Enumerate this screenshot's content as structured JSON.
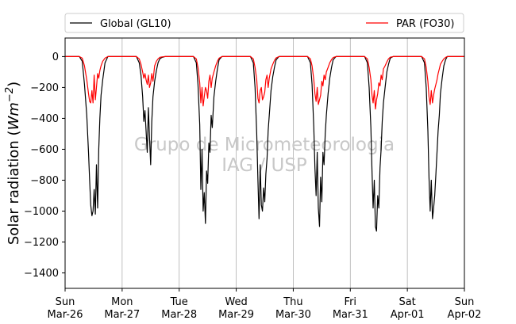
{
  "chart_data": {
    "type": "line",
    "ylabel_main": "Solar radiation (",
    "ylabel_math": "Wm",
    "ylabel_exp": "−2",
    "ylabel_close": ")",
    "ylim": [
      -1500,
      120
    ],
    "yticks": [
      0,
      -200,
      -400,
      -600,
      -800,
      -1000,
      -1200,
      -1400
    ],
    "xticks": [
      {
        "day": "Sun",
        "date": "Mar-26"
      },
      {
        "day": "Mon",
        "date": "Mar-27"
      },
      {
        "day": "Tue",
        "date": "Mar-28"
      },
      {
        "day": "Wed",
        "date": "Mar-29"
      },
      {
        "day": "Thu",
        "date": "Mar-30"
      },
      {
        "day": "Fri",
        "date": "Mar-31"
      },
      {
        "day": "Sat",
        "date": "Apr-01"
      },
      {
        "day": "Sun",
        "date": "Apr-02"
      }
    ],
    "x_range_days": [
      0,
      7
    ],
    "grid": "vertical-only",
    "legend_position": "top (above plot)",
    "watermark": [
      "Grupo de Micrometeorologia",
      "IAG / USP"
    ],
    "series": [
      {
        "name": "Global (GL10)",
        "color": "#000000",
        "x": [
          0.0,
          0.25,
          0.3,
          0.34,
          0.38,
          0.41,
          0.43,
          0.45,
          0.47,
          0.49,
          0.51,
          0.53,
          0.55,
          0.57,
          0.59,
          0.61,
          0.63,
          0.66,
          0.7,
          0.75,
          1.0,
          1.25,
          1.3,
          1.33,
          1.36,
          1.38,
          1.4,
          1.42,
          1.44,
          1.46,
          1.48,
          1.5,
          1.52,
          1.54,
          1.57,
          1.6,
          1.63,
          1.66,
          1.7,
          1.75,
          2.0,
          2.25,
          2.3,
          2.33,
          2.36,
          2.38,
          2.4,
          2.42,
          2.44,
          2.46,
          2.48,
          2.5,
          2.52,
          2.54,
          2.56,
          2.58,
          2.61,
          2.64,
          2.67,
          2.7,
          2.75,
          3.0,
          3.25,
          3.3,
          3.33,
          3.36,
          3.38,
          3.4,
          3.42,
          3.44,
          3.46,
          3.48,
          3.5,
          3.52,
          3.54,
          3.56,
          3.58,
          3.61,
          3.64,
          3.67,
          3.7,
          3.75,
          4.0,
          4.25,
          4.3,
          4.33,
          4.36,
          4.38,
          4.4,
          4.42,
          4.44,
          4.46,
          4.48,
          4.5,
          4.52,
          4.54,
          4.56,
          4.58,
          4.61,
          4.64,
          4.67,
          4.7,
          4.75,
          5.0,
          5.25,
          5.3,
          5.33,
          5.36,
          5.38,
          5.4,
          5.42,
          5.44,
          5.46,
          5.48,
          5.5,
          5.52,
          5.54,
          5.56,
          5.58,
          5.61,
          5.64,
          5.67,
          5.7,
          5.75,
          6.0,
          6.25,
          6.3,
          6.33,
          6.36,
          6.38,
          6.4,
          6.42,
          6.44,
          6.46,
          6.48,
          6.5,
          6.52,
          6.54,
          6.56,
          6.58,
          6.61,
          6.64,
          6.67,
          6.7,
          6.75,
          7.0
        ],
        "y": [
          0,
          0,
          -30,
          -180,
          -380,
          -620,
          -800,
          -960,
          -1030,
          -1000,
          -860,
          -1020,
          -700,
          -980,
          -600,
          -400,
          -250,
          -150,
          -40,
          0,
          0,
          0,
          -40,
          -120,
          -260,
          -420,
          -350,
          -480,
          -620,
          -330,
          -520,
          -700,
          -420,
          -260,
          -160,
          -90,
          -40,
          -15,
          -5,
          0,
          0,
          0,
          -40,
          -180,
          -440,
          -860,
          -600,
          -1000,
          -880,
          -1080,
          -740,
          -820,
          -560,
          -620,
          -380,
          -460,
          -260,
          -160,
          -80,
          -20,
          0,
          0,
          0,
          -40,
          -200,
          -500,
          -800,
          -1050,
          -700,
          -960,
          -1000,
          -850,
          -940,
          -760,
          -660,
          -480,
          -380,
          -220,
          -130,
          -70,
          -20,
          0,
          0,
          0,
          -40,
          -180,
          -460,
          -720,
          -900,
          -620,
          -980,
          -1100,
          -780,
          -940,
          -620,
          -700,
          -500,
          -380,
          -240,
          -140,
          -70,
          -20,
          0,
          0,
          0,
          -40,
          -200,
          -460,
          -740,
          -980,
          -800,
          -1100,
          -1130,
          -900,
          -980,
          -720,
          -600,
          -420,
          -300,
          -200,
          -100,
          -50,
          -10,
          0,
          0,
          0,
          -40,
          -200,
          -480,
          -780,
          -1000,
          -800,
          -1050,
          -980,
          -900,
          -760,
          -620,
          -480,
          -380,
          -240,
          -140,
          -60,
          -20,
          0,
          0,
          0
        ]
      },
      {
        "name": "PAR (FO30)",
        "color": "#ff0000",
        "x": [
          0.0,
          0.25,
          0.3,
          0.34,
          0.38,
          0.41,
          0.43,
          0.45,
          0.47,
          0.49,
          0.51,
          0.53,
          0.55,
          0.57,
          0.59,
          0.61,
          0.63,
          0.66,
          0.7,
          0.75,
          1.0,
          1.25,
          1.3,
          1.33,
          1.36,
          1.38,
          1.4,
          1.42,
          1.44,
          1.46,
          1.48,
          1.5,
          1.52,
          1.54,
          1.57,
          1.6,
          1.63,
          1.66,
          1.7,
          1.75,
          2.0,
          2.25,
          2.3,
          2.33,
          2.36,
          2.38,
          2.4,
          2.42,
          2.44,
          2.46,
          2.48,
          2.5,
          2.52,
          2.54,
          2.56,
          2.58,
          2.61,
          2.64,
          2.67,
          2.7,
          2.75,
          3.0,
          3.25,
          3.3,
          3.33,
          3.36,
          3.38,
          3.4,
          3.42,
          3.44,
          3.46,
          3.48,
          3.5,
          3.52,
          3.54,
          3.56,
          3.58,
          3.61,
          3.64,
          3.67,
          3.7,
          3.75,
          4.0,
          4.25,
          4.3,
          4.33,
          4.36,
          4.38,
          4.4,
          4.42,
          4.44,
          4.46,
          4.48,
          4.5,
          4.52,
          4.54,
          4.56,
          4.58,
          4.61,
          4.64,
          4.67,
          4.7,
          4.75,
          5.0,
          5.25,
          5.3,
          5.33,
          5.36,
          5.38,
          5.4,
          5.42,
          5.44,
          5.46,
          5.48,
          5.5,
          5.52,
          5.54,
          5.56,
          5.58,
          5.61,
          5.64,
          5.67,
          5.7,
          5.75,
          6.0,
          6.25,
          6.3,
          6.33,
          6.36,
          6.38,
          6.4,
          6.42,
          6.44,
          6.46,
          6.48,
          6.5,
          6.52,
          6.54,
          6.56,
          6.58,
          6.61,
          6.64,
          6.67,
          6.7,
          6.75,
          7.0
        ],
        "y": [
          0,
          0,
          -10,
          -60,
          -150,
          -240,
          -290,
          -300,
          -220,
          -300,
          -120,
          -280,
          -200,
          -110,
          -140,
          -90,
          -60,
          -30,
          -10,
          0,
          0,
          0,
          -15,
          -50,
          -100,
          -140,
          -110,
          -150,
          -180,
          -120,
          -200,
          -170,
          -110,
          -160,
          -60,
          -30,
          -15,
          -5,
          -2,
          0,
          0,
          0,
          -15,
          -70,
          -170,
          -300,
          -200,
          -320,
          -260,
          -200,
          -220,
          -270,
          -160,
          -120,
          -200,
          -140,
          -100,
          -60,
          -30,
          -10,
          0,
          0,
          0,
          -15,
          -70,
          -150,
          -270,
          -300,
          -220,
          -200,
          -280,
          -260,
          -230,
          -150,
          -120,
          -200,
          -140,
          -80,
          -50,
          -25,
          -8,
          0,
          0,
          0,
          -15,
          -60,
          -150,
          -240,
          -290,
          -200,
          -310,
          -280,
          -250,
          -160,
          -190,
          -120,
          -150,
          -100,
          -70,
          -40,
          -20,
          -6,
          0,
          0,
          0,
          -15,
          -70,
          -150,
          -250,
          -300,
          -220,
          -340,
          -280,
          -240,
          -170,
          -190,
          -120,
          -150,
          -80,
          -60,
          -35,
          -15,
          -4,
          0,
          0,
          0,
          -15,
          -70,
          -160,
          -260,
          -310,
          -220,
          -300,
          -250,
          -210,
          -180,
          -150,
          -110,
          -80,
          -50,
          -30,
          -15,
          -5,
          0,
          0,
          0
        ]
      }
    ]
  }
}
